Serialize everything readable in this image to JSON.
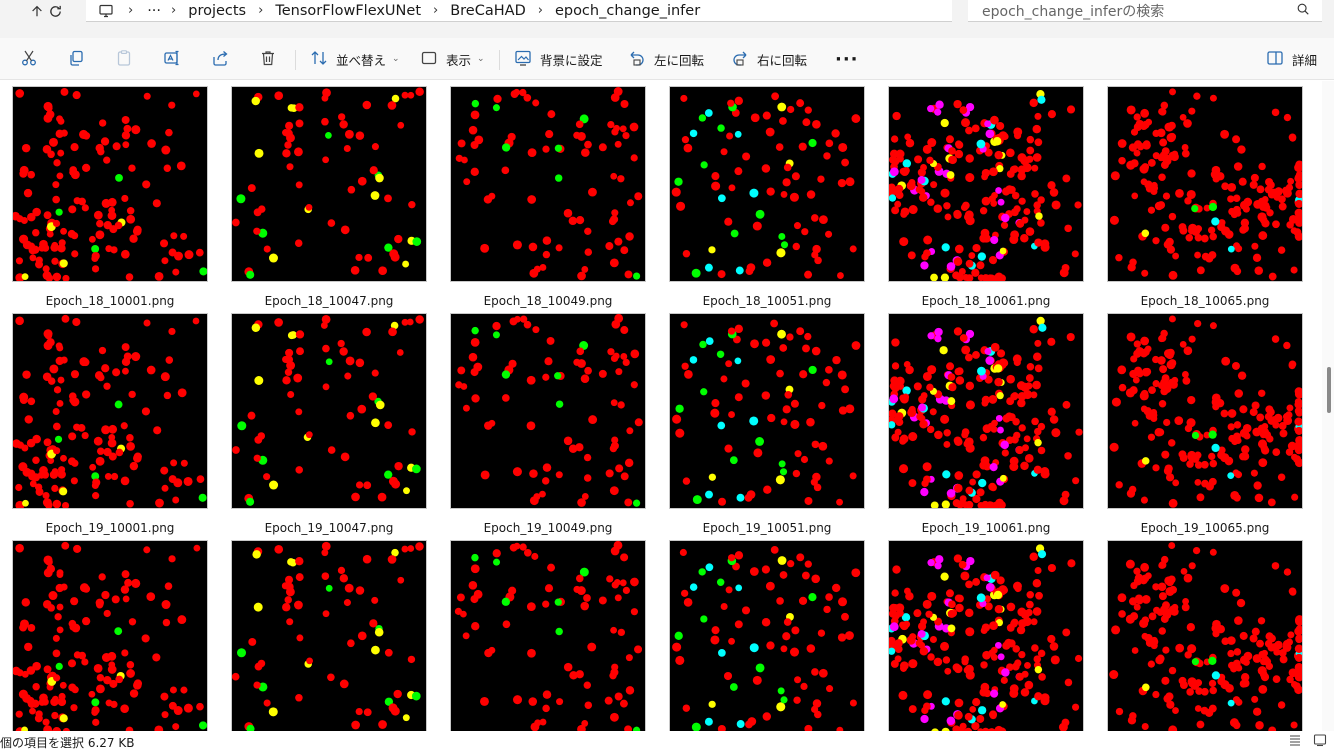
{
  "address_bar": {
    "breadcrumbs": [
      "projects",
      "TensorFlowFlexUNet",
      "BreCaHAD",
      "epoch_change_infer"
    ],
    "search_placeholder": "epoch_change_inferの検索"
  },
  "toolbar": {
    "sort_label": "並べ替え",
    "view_label": "表示",
    "set_background_label": "背景に設定",
    "rotate_left_label": "左に回転",
    "rotate_right_label": "右に回転",
    "details_label": "詳細"
  },
  "files": [
    {
      "name": "Epoch_18_10001.png",
      "image": "10001",
      "variant": 0
    },
    {
      "name": "Epoch_18_10047.png",
      "image": "10047",
      "variant": 0
    },
    {
      "name": "Epoch_18_10049.png",
      "image": "10049",
      "variant": 0
    },
    {
      "name": "Epoch_18_10051.png",
      "image": "10051",
      "variant": 0
    },
    {
      "name": "Epoch_18_10061.png",
      "image": "10061",
      "variant": 0
    },
    {
      "name": "Epoch_18_10065.png",
      "image": "10065",
      "variant": 0
    },
    {
      "name": "Epoch_19_10001.png",
      "image": "10001",
      "variant": 1
    },
    {
      "name": "Epoch_19_10047.png",
      "image": "10047",
      "variant": 1
    },
    {
      "name": "Epoch_19_10049.png",
      "image": "10049",
      "variant": 1
    },
    {
      "name": "Epoch_19_10051.png",
      "image": "10051",
      "variant": 1
    },
    {
      "name": "Epoch_19_10061.png",
      "image": "10061",
      "variant": 1
    },
    {
      "name": "Epoch_19_10065.png",
      "image": "10065",
      "variant": 1
    },
    {
      "name": "",
      "image": "10001",
      "variant": 2
    },
    {
      "name": "",
      "image": "10047",
      "variant": 2
    },
    {
      "name": "",
      "image": "10049",
      "variant": 2
    },
    {
      "name": "",
      "image": "10051",
      "variant": 2
    },
    {
      "name": "",
      "image": "10061",
      "variant": 2
    },
    {
      "name": "",
      "image": "10065",
      "variant": 2
    }
  ],
  "colors": {
    "red": "#ff0000",
    "yellow": "#ffff00",
    "green": "#00ff00",
    "cyan": "#00ffff",
    "magenta": "#ff00ff",
    "background": "#000000"
  },
  "status_bar": {
    "selection_text": "個の項目を選択  6.27 KB"
  }
}
